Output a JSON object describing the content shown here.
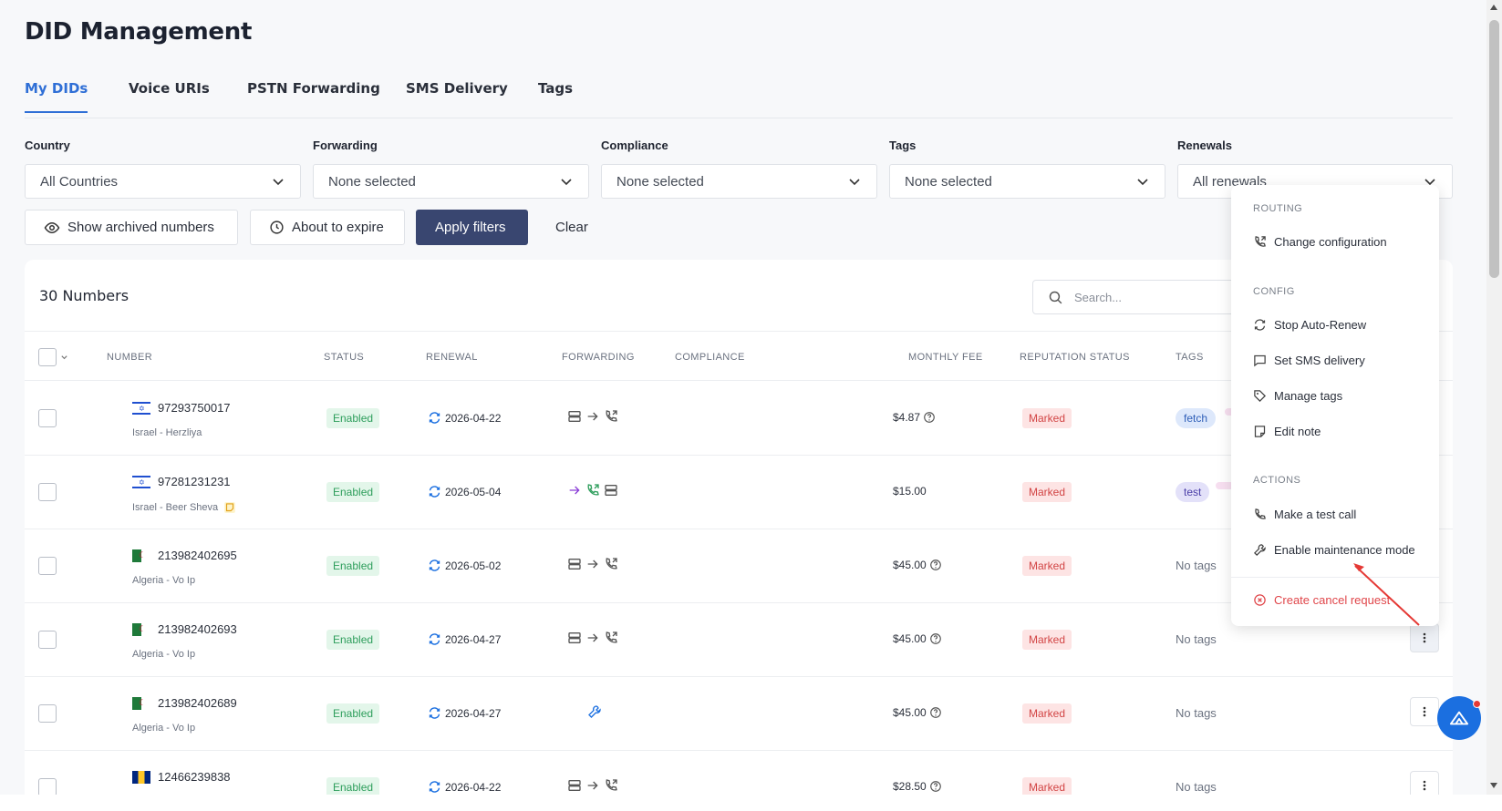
{
  "page": {
    "title": "DID Management"
  },
  "tabs": [
    {
      "label": "My DIDs",
      "active": true
    },
    {
      "label": "Voice URIs"
    },
    {
      "label": "PSTN Forwarding"
    },
    {
      "label": "SMS Delivery"
    },
    {
      "label": "Tags"
    }
  ],
  "filters": {
    "country": {
      "label": "Country",
      "value": "All Countries"
    },
    "forwarding": {
      "label": "Forwarding",
      "value": "None selected"
    },
    "compliance": {
      "label": "Compliance",
      "value": "None selected"
    },
    "tags": {
      "label": "Tags",
      "value": "None selected"
    },
    "renewals": {
      "label": "Renewals",
      "value": "All renewals"
    }
  },
  "actions": {
    "show_archived": "Show archived numbers",
    "about_to_expire": "About to expire",
    "apply": "Apply filters",
    "clear": "Clear"
  },
  "table": {
    "count_label": "30 Numbers",
    "search_placeholder": "Search...",
    "columns": {
      "number": "NUMBER",
      "status": "STATUS",
      "renewal": "RENEWAL",
      "forwarding": "FORWARDING",
      "compliance": "COMPLIANCE",
      "monthly_fee": "MONTHLY FEE",
      "reputation": "REPUTATION STATUS",
      "tags": "TAGS"
    },
    "rows": [
      {
        "number": "97293750017",
        "location": "Israel - Herzliya",
        "status": "Enabled",
        "renewal": "2026-04-22",
        "forwarding": "server-arrow-phone",
        "fee": "$4.87",
        "reputation": "Marked",
        "tags": [
          "fetch"
        ],
        "no_tags": ""
      },
      {
        "number": "97281231231",
        "location": "Israel - Beer Sheva",
        "status": "Enabled",
        "renewal": "2026-05-04",
        "forwarding": "arrow-phone-server",
        "fee": "$15.00",
        "reputation": "Marked",
        "tags": [
          "test"
        ],
        "no_tags": ""
      },
      {
        "number": "213982402695",
        "location": "Algeria - Vo Ip",
        "status": "Enabled",
        "renewal": "2026-05-02",
        "forwarding": "server-arrow-phone",
        "fee": "$45.00",
        "reputation": "Marked",
        "tags": [],
        "no_tags": "No tags"
      },
      {
        "number": "213982402693",
        "location": "Algeria - Vo Ip",
        "status": "Enabled",
        "renewal": "2026-04-27",
        "forwarding": "server-arrow-phone",
        "fee": "$45.00",
        "reputation": "Marked",
        "tags": [],
        "no_tags": "No tags"
      },
      {
        "number": "213982402689",
        "location": "Algeria - Vo Ip",
        "status": "Enabled",
        "renewal": "2026-04-27",
        "forwarding": "wrench",
        "fee": "$45.00",
        "reputation": "Marked",
        "tags": [],
        "no_tags": "No tags"
      },
      {
        "number": "12466239838",
        "location": "",
        "status": "Enabled",
        "renewal": "2026-04-22",
        "forwarding": "server-arrow-phone",
        "fee": "$28.50",
        "reputation": "Marked",
        "tags": [],
        "no_tags": "No tags"
      }
    ]
  },
  "context_menu": {
    "routing_label": "ROUTING",
    "change_configuration": "Change configuration",
    "config_label": "CONFIG",
    "stop_auto_renew": "Stop Auto-Renew",
    "set_sms_delivery": "Set SMS delivery",
    "manage_tags": "Manage tags",
    "edit_note": "Edit note",
    "actions_label": "ACTIONS",
    "make_test_call": "Make a test call",
    "enable_maintenance": "Enable maintenance mode",
    "create_cancel": "Create cancel request"
  },
  "colors": {
    "accent": "#2f6fd6",
    "primary_button": "#394670",
    "enabled_bg": "#e3f6ea",
    "enabled_text": "#2e9e5c",
    "marked_bg": "#fde4e4",
    "marked_text": "#d24545",
    "danger": "#e0464a",
    "annotation_arrow": "#e53935"
  }
}
